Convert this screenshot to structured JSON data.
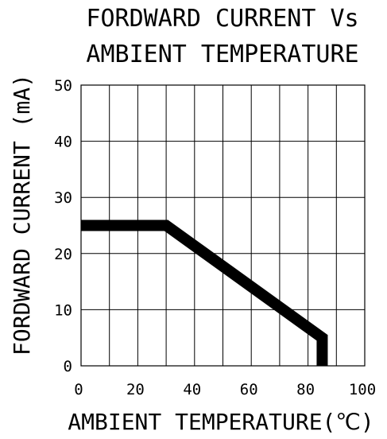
{
  "chart_data": {
    "type": "line",
    "title_lines": [
      "FORDWARD CURRENT Vs",
      "AMBIENT TEMPERATURE"
    ],
    "xlabel": "AMBIENT TEMPERATURE(℃)",
    "ylabel": "FORDWARD CURRENT (mA)",
    "xlim": [
      0,
      100
    ],
    "ylim": [
      0,
      50
    ],
    "x_ticks": [
      0,
      20,
      40,
      60,
      80,
      100
    ],
    "y_ticks": [
      0,
      10,
      20,
      30,
      40,
      50
    ],
    "x_grid": [
      0,
      10,
      20,
      30,
      40,
      50,
      60,
      70,
      80,
      90,
      100
    ],
    "y_grid": [
      0,
      10,
      20,
      30,
      40,
      50
    ],
    "grid": true,
    "series": [
      {
        "x": [
          0,
          30,
          85,
          85
        ],
        "y": [
          25,
          25,
          5,
          0
        ]
      }
    ],
    "colors": {
      "line": "#000000",
      "grid": "#000000",
      "background": "#ffffff"
    }
  }
}
